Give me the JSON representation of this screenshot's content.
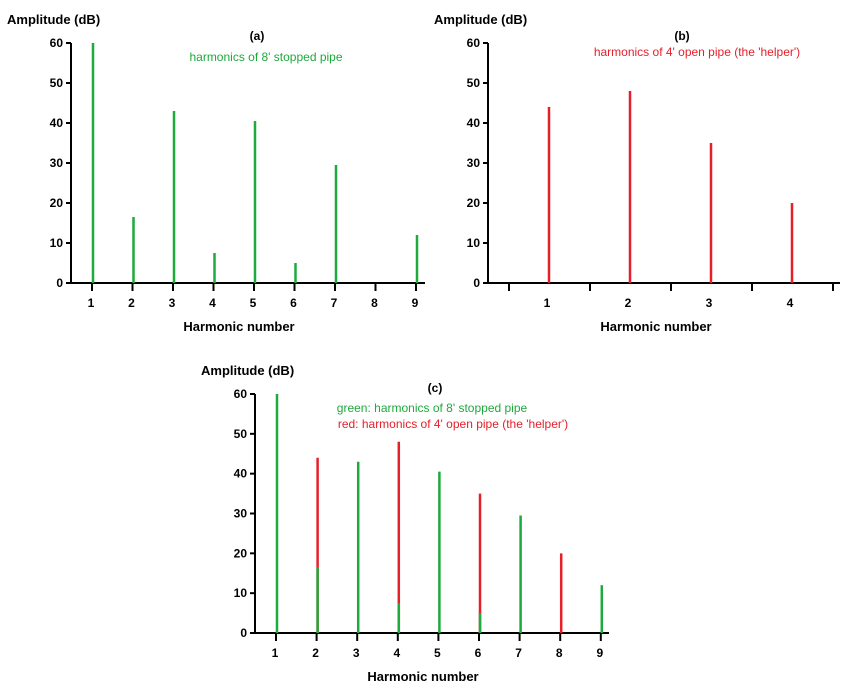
{
  "colors": {
    "green": "#1eaa3c",
    "red": "#e5202a",
    "axis": "#000000"
  },
  "chart_data": [
    {
      "id": "a",
      "type": "bar",
      "panel_label": "(a)",
      "annotations": [
        {
          "text": "harmonics of 8' stopped pipe",
          "color": "green"
        }
      ],
      "ylabel": "Amplitude (dB)",
      "xlabel": "Harmonic number",
      "ylim": [
        0,
        60
      ],
      "yticks": [
        0,
        10,
        20,
        30,
        40,
        50,
        60
      ],
      "xticks": [
        1,
        2,
        3,
        4,
        5,
        6,
        7,
        8,
        9
      ],
      "series": [
        {
          "color": "green",
          "points": [
            {
              "x": 1,
              "y": 60
            },
            {
              "x": 2,
              "y": 16.5
            },
            {
              "x": 3,
              "y": 43
            },
            {
              "x": 4,
              "y": 7.5
            },
            {
              "x": 5,
              "y": 40.5
            },
            {
              "x": 6,
              "y": 5
            },
            {
              "x": 7,
              "y": 29.5
            },
            {
              "x": 9,
              "y": 12
            }
          ]
        }
      ]
    },
    {
      "id": "b",
      "type": "bar",
      "panel_label": "(b)",
      "annotations": [
        {
          "text": "harmonics of 4' open pipe (the 'helper')",
          "color": "red"
        }
      ],
      "ylabel": "Amplitude (dB)",
      "xlabel": "Harmonic number",
      "ylim": [
        0,
        60
      ],
      "yticks": [
        0,
        10,
        20,
        30,
        40,
        50,
        60
      ],
      "xticks": [
        1,
        2,
        3,
        4
      ],
      "series": [
        {
          "color": "red",
          "points": [
            {
              "x": 1,
              "y": 44
            },
            {
              "x": 2,
              "y": 48
            },
            {
              "x": 3,
              "y": 35
            },
            {
              "x": 4,
              "y": 20
            }
          ]
        }
      ]
    },
    {
      "id": "c",
      "type": "bar",
      "panel_label": "(c)",
      "annotations": [
        {
          "text": "green: harmonics of 8' stopped pipe",
          "color": "green"
        },
        {
          "text": "red: harmonics of 4' open pipe (the 'helper')",
          "color": "red"
        }
      ],
      "ylabel": "Amplitude (dB)",
      "xlabel": "Harmonic number",
      "ylim": [
        0,
        60
      ],
      "yticks": [
        0,
        10,
        20,
        30,
        40,
        50,
        60
      ],
      "xticks": [
        1,
        2,
        3,
        4,
        5,
        6,
        7,
        8,
        9
      ],
      "series": [
        {
          "color": "red",
          "points": [
            {
              "x": 2,
              "y": 44
            },
            {
              "x": 4,
              "y": 48
            },
            {
              "x": 6,
              "y": 35
            },
            {
              "x": 8,
              "y": 20
            }
          ]
        },
        {
          "color": "green",
          "points": [
            {
              "x": 1,
              "y": 60
            },
            {
              "x": 2,
              "y": 16.5
            },
            {
              "x": 3,
              "y": 43
            },
            {
              "x": 4,
              "y": 7.5
            },
            {
              "x": 5,
              "y": 40.5
            },
            {
              "x": 6,
              "y": 5
            },
            {
              "x": 7,
              "y": 29.5
            },
            {
              "x": 9,
              "y": 12
            }
          ]
        }
      ]
    }
  ]
}
